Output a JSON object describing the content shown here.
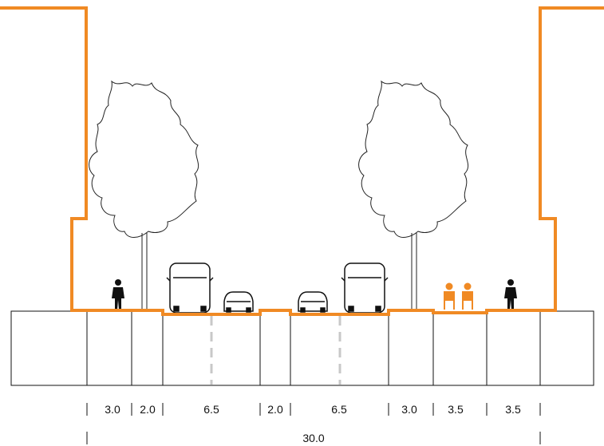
{
  "colors": {
    "profile": "#f08a24",
    "ground": "#111111",
    "lane_marking": "#c8c8c8",
    "tree": "#222222",
    "pedestrian": "#111111",
    "cyclist": "#f08a24"
  },
  "segments": [
    {
      "name": "sidewalk",
      "width_label": "3.0"
    },
    {
      "name": "tree-verge",
      "width_label": "2.0"
    },
    {
      "name": "carriageway",
      "width_label": "6.5"
    },
    {
      "name": "median",
      "width_label": "2.0"
    },
    {
      "name": "carriageway",
      "width_label": "6.5"
    },
    {
      "name": "tree-verge",
      "width_label": "3.0"
    },
    {
      "name": "bike-lane",
      "width_label": "3.5"
    },
    {
      "name": "sidewalk",
      "width_label": "3.5"
    }
  ],
  "total_width_label": "30.0",
  "icons": [
    "tree-icon",
    "tree-icon",
    "pedestrian-icon",
    "pedestrian-icon",
    "bus-icon",
    "bus-icon",
    "car-icon",
    "car-icon",
    "cyclist-icon"
  ]
}
